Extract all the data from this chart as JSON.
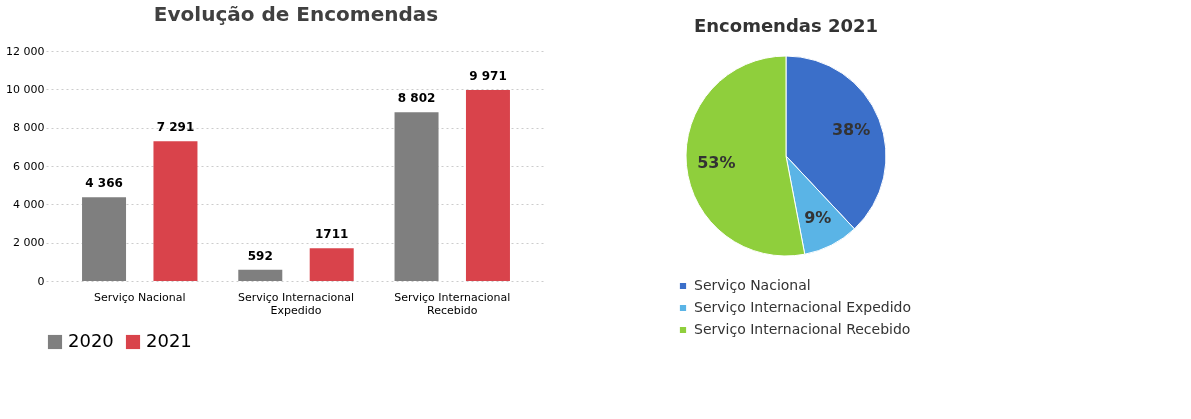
{
  "chart_data": [
    {
      "type": "bar",
      "title": "Evolução de Encomendas",
      "categories": [
        "Serviço Nacional",
        "Serviço Internacional Expedido",
        "Serviço Internacional Recebido"
      ],
      "series": [
        {
          "name": "2020",
          "color": "#7f7f7f",
          "values": [
            4366,
            592,
            8802
          ],
          "value_labels": [
            "4 366",
            "592",
            "8 802"
          ]
        },
        {
          "name": "2021",
          "color": "#d9434b",
          "values": [
            7291,
            1711,
            9971
          ],
          "value_labels": [
            "7 291",
            "1711",
            "9 971"
          ]
        }
      ],
      "ylim": [
        0,
        12000
      ],
      "yticks": [
        0,
        {
          "value": 2000,
          "label": "2 000"
        },
        {
          "value": 4000,
          "label": "4 000"
        },
        {
          "value": 6000,
          "label": "6 000"
        },
        {
          "value": 8000,
          "label": "8 000"
        },
        {
          "value": 10000,
          "label": "10 000"
        },
        {
          "value": 12000,
          "label": "12 000"
        }
      ],
      "grid": "y",
      "legend": "bottom"
    },
    {
      "type": "pie",
      "title": "Encomendas 2021",
      "categories": [
        "Serviço Nacional",
        "Serviço Internacional Expedido",
        "Serviço Internacional Recebido"
      ],
      "values": [
        38,
        9,
        53
      ],
      "value_labels": [
        "38%",
        "9%",
        "53%"
      ],
      "colors": [
        "#3b6fc9",
        "#5ab4e6",
        "#8fcf3c"
      ],
      "legend": "bottom"
    }
  ]
}
